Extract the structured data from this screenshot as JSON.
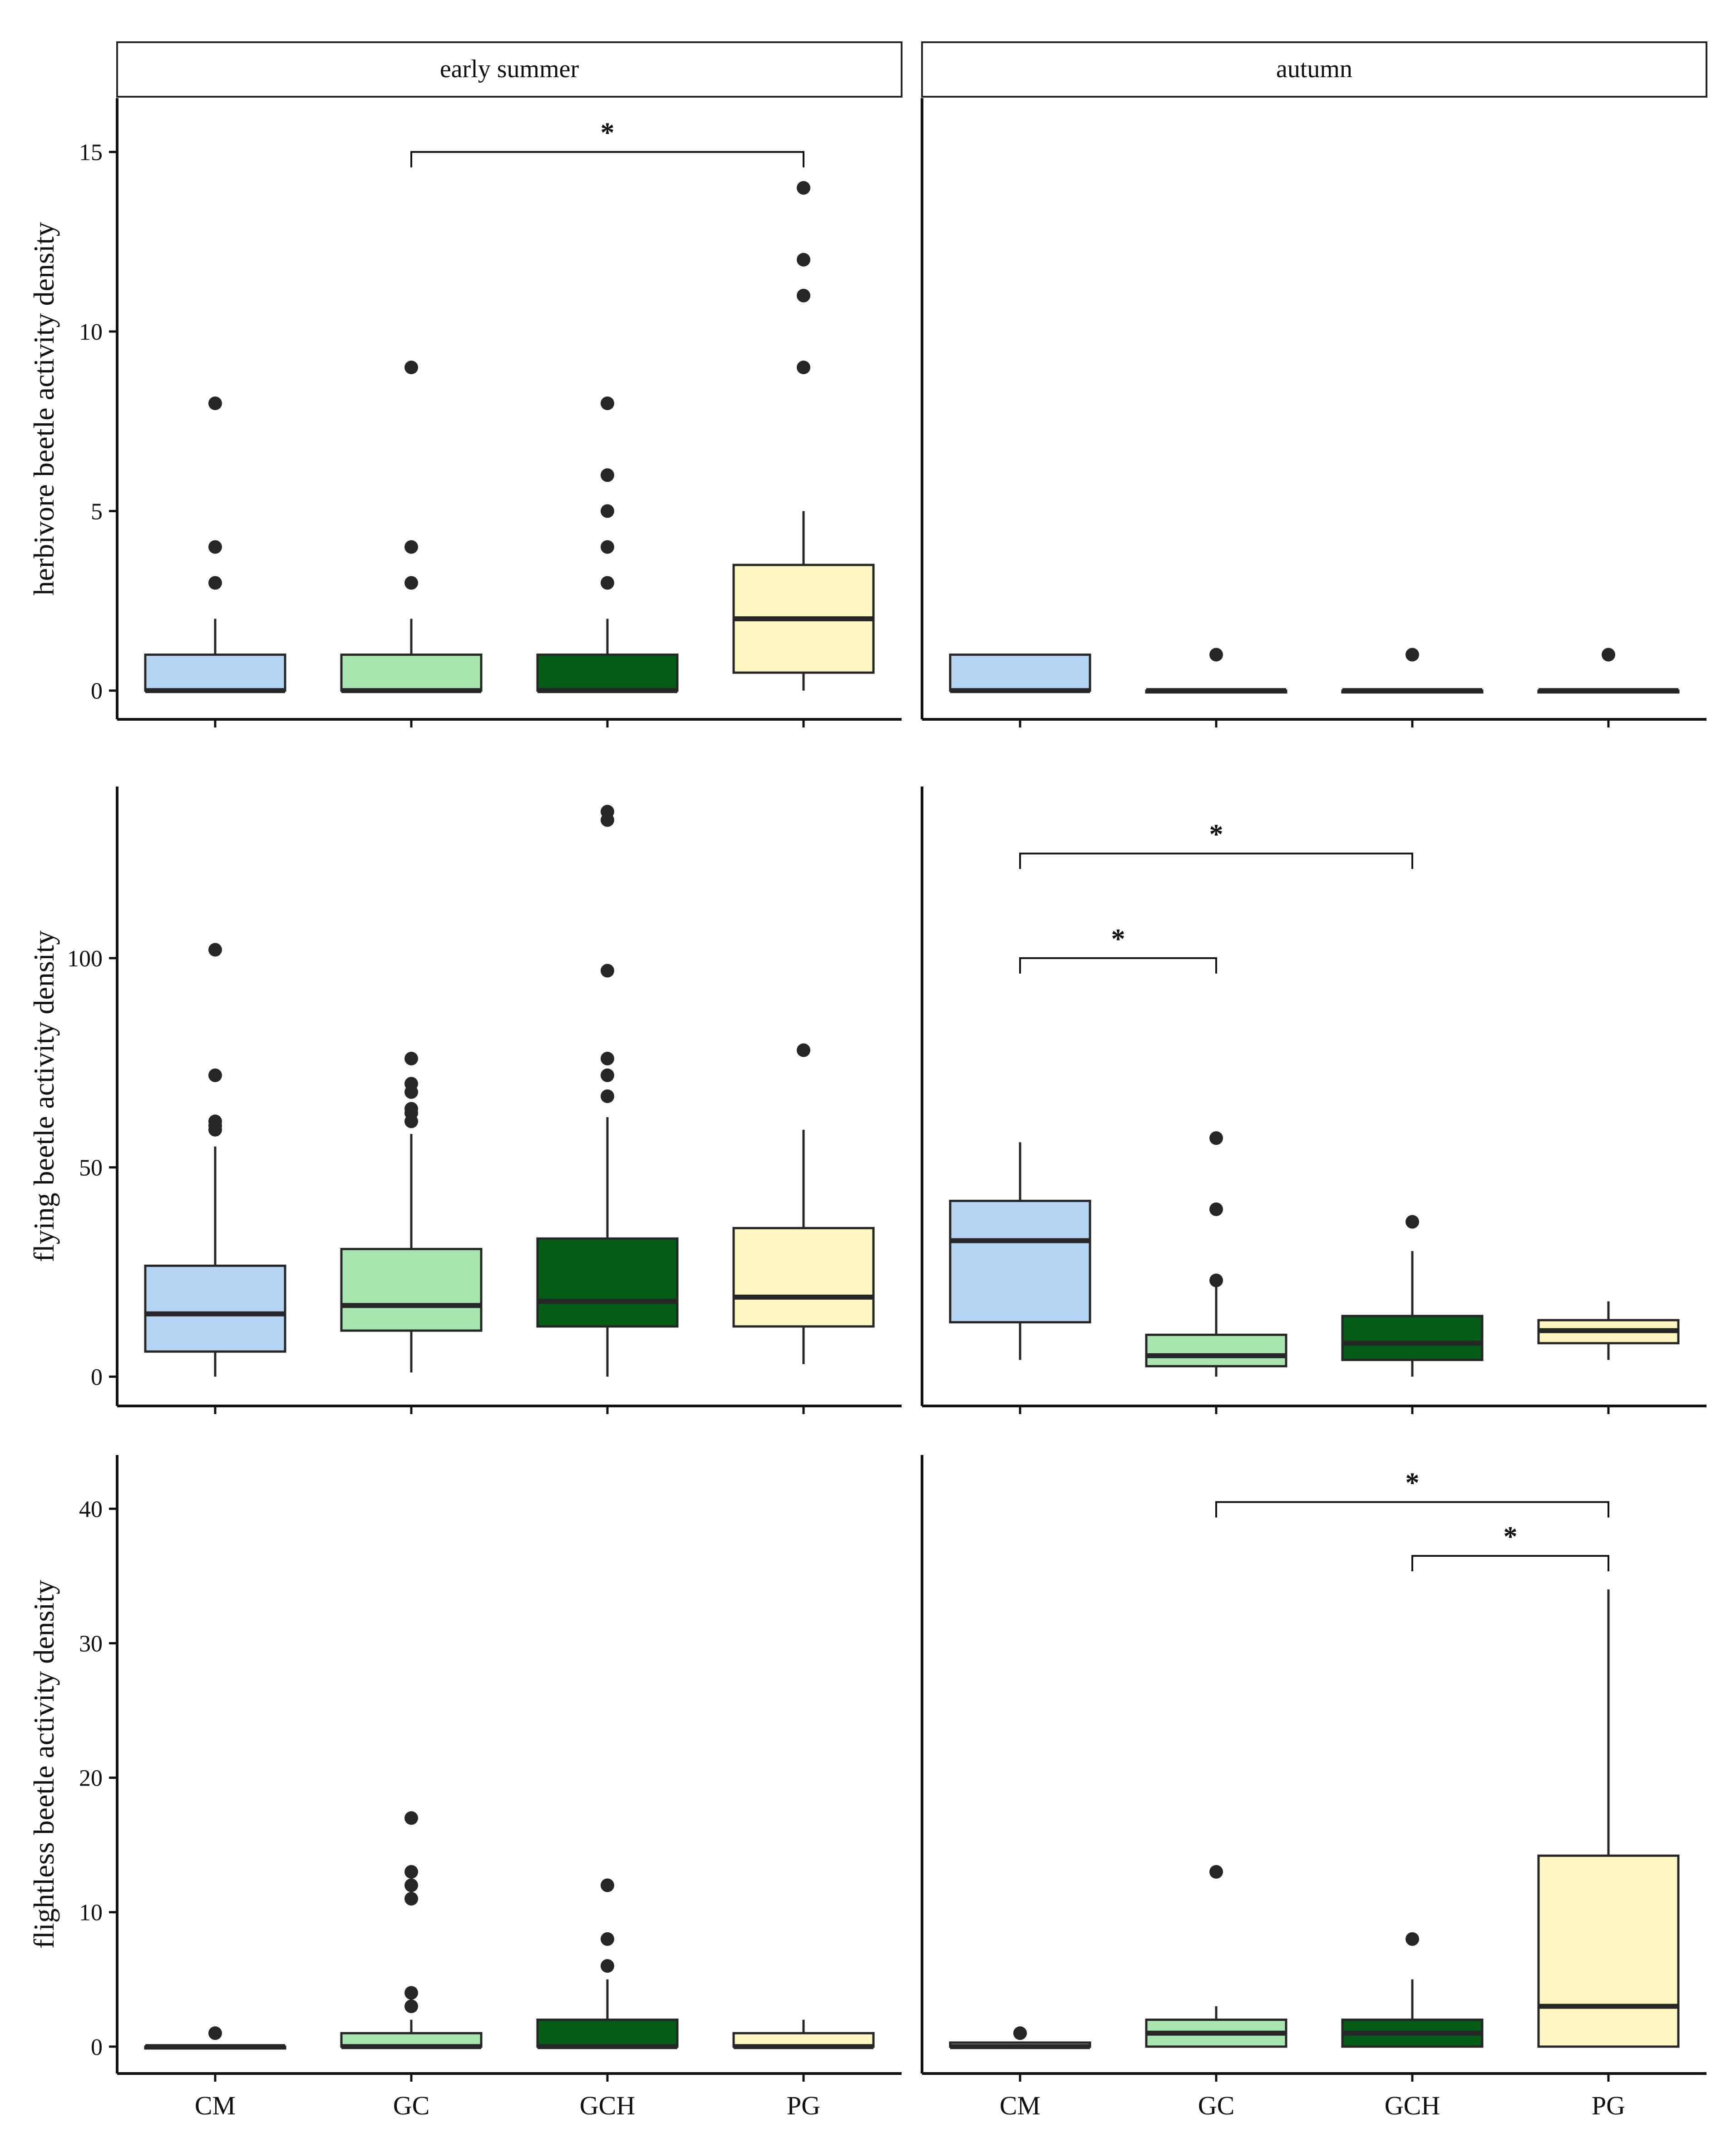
{
  "facets": [
    "early summer",
    "autumn"
  ],
  "categories": [
    "CM",
    "GC",
    "GCH",
    "PG"
  ],
  "colors": {
    "CM": "#b3d4f2",
    "GC": "#a8e6b0",
    "GCH": "#035c16",
    "PG": "#fff7c2",
    "outline": "#262626",
    "point": "#262626"
  },
  "chart_data": [
    {
      "type": "box",
      "ylabel": "herbivore beetle activity density",
      "ylim": [
        -0.8,
        16.5
      ],
      "yticks": [
        0,
        5,
        10,
        15
      ],
      "panels": [
        {
          "facet": "early summer",
          "boxes": [
            {
              "category": "CM",
              "q1": 0,
              "median": 0,
              "q3": 1,
              "whisker_low": 0,
              "whisker_high": 2,
              "outliers": [
                3,
                4,
                8
              ]
            },
            {
              "category": "GC",
              "q1": 0,
              "median": 0,
              "q3": 1,
              "whisker_low": 0,
              "whisker_high": 2,
              "outliers": [
                3,
                4,
                9
              ]
            },
            {
              "category": "GCH",
              "q1": 0,
              "median": 0,
              "q3": 1,
              "whisker_low": 0,
              "whisker_high": 2,
              "outliers": [
                3,
                4,
                5,
                6,
                8
              ]
            },
            {
              "category": "PG",
              "q1": 0.5,
              "median": 2,
              "q3": 3.5,
              "whisker_low": 0,
              "whisker_high": 5,
              "outliers": [
                9,
                11,
                12,
                14
              ]
            }
          ],
          "significance": [
            {
              "from": "GC",
              "to": "PG",
              "label": "*",
              "y": 15
            }
          ]
        },
        {
          "facet": "autumn",
          "boxes": [
            {
              "category": "CM",
              "q1": 0,
              "median": 0,
              "q3": 1,
              "whisker_low": 0,
              "whisker_high": 1,
              "outliers": []
            },
            {
              "category": "GC",
              "q1": 0,
              "median": 0,
              "q3": 0,
              "whisker_low": 0,
              "whisker_high": 0,
              "outliers": [
                1
              ]
            },
            {
              "category": "GCH",
              "q1": 0,
              "median": 0,
              "q3": 0,
              "whisker_low": 0,
              "whisker_high": 0,
              "outliers": [
                1
              ]
            },
            {
              "category": "PG",
              "q1": 0,
              "median": 0,
              "q3": 0,
              "whisker_low": 0,
              "whisker_high": 0,
              "outliers": [
                1
              ]
            }
          ],
          "significance": []
        }
      ]
    },
    {
      "type": "box",
      "ylabel": "flying beetle activity density",
      "ylim": [
        -7,
        141
      ],
      "yticks": [
        0,
        50,
        100
      ],
      "panels": [
        {
          "facet": "early summer",
          "boxes": [
            {
              "category": "CM",
              "q1": 6,
              "median": 15,
              "q3": 26.5,
              "whisker_low": 0,
              "whisker_high": 55,
              "outliers": [
                59,
                60,
                61,
                72,
                102
              ]
            },
            {
              "category": "GC",
              "q1": 11,
              "median": 17,
              "q3": 30.5,
              "whisker_low": 1,
              "whisker_high": 58,
              "outliers": [
                61,
                63,
                64,
                68,
                70,
                76
              ]
            },
            {
              "category": "GCH",
              "q1": 12,
              "median": 18,
              "q3": 33,
              "whisker_low": 0,
              "whisker_high": 62,
              "outliers": [
                67,
                72,
                76,
                97,
                133,
                135
              ]
            },
            {
              "category": "PG",
              "q1": 12,
              "median": 19,
              "q3": 35.5,
              "whisker_low": 3,
              "whisker_high": 59,
              "outliers": [
                78
              ]
            }
          ],
          "significance": []
        },
        {
          "facet": "autumn",
          "boxes": [
            {
              "category": "CM",
              "q1": 13,
              "median": 32.5,
              "q3": 42,
              "whisker_low": 4,
              "whisker_high": 56,
              "outliers": []
            },
            {
              "category": "GC",
              "q1": 2.5,
              "median": 5,
              "q3": 10,
              "whisker_low": 0,
              "whisker_high": 22,
              "outliers": [
                23,
                40,
                57
              ]
            },
            {
              "category": "GCH",
              "q1": 4,
              "median": 8,
              "q3": 14.5,
              "whisker_low": 0,
              "whisker_high": 30,
              "outliers": [
                37
              ]
            },
            {
              "category": "PG",
              "q1": 8,
              "median": 11,
              "q3": 13.5,
              "whisker_low": 4,
              "whisker_high": 18,
              "outliers": []
            }
          ],
          "significance": [
            {
              "from": "CM",
              "to": "GC",
              "label": "*",
              "y": 100
            },
            {
              "from": "CM",
              "to": "GCH",
              "label": "*",
              "y": 125
            }
          ]
        }
      ]
    },
    {
      "type": "box",
      "ylabel": "flightless beetle activity density",
      "ylim": [
        -2,
        44
      ],
      "yticks": [
        0,
        10,
        20,
        30,
        40
      ],
      "panels": [
        {
          "facet": "early summer",
          "boxes": [
            {
              "category": "CM",
              "q1": 0,
              "median": 0,
              "q3": 0,
              "whisker_low": 0,
              "whisker_high": 0,
              "outliers": [
                1
              ]
            },
            {
              "category": "GC",
              "q1": 0,
              "median": 0,
              "q3": 1,
              "whisker_low": 0,
              "whisker_high": 2,
              "outliers": [
                3,
                4,
                11,
                12,
                13,
                17
              ]
            },
            {
              "category": "GCH",
              "q1": 0,
              "median": 0,
              "q3": 2,
              "whisker_low": 0,
              "whisker_high": 5,
              "outliers": [
                6,
                8,
                12
              ]
            },
            {
              "category": "PG",
              "q1": 0,
              "median": 0,
              "q3": 1,
              "whisker_low": 0,
              "whisker_high": 2,
              "outliers": []
            }
          ],
          "significance": []
        },
        {
          "facet": "autumn",
          "boxes": [
            {
              "category": "CM",
              "q1": 0,
              "median": 0,
              "q3": 0.3,
              "whisker_low": 0,
              "whisker_high": 0.3,
              "outliers": [
                1
              ]
            },
            {
              "category": "GC",
              "q1": 0,
              "median": 1,
              "q3": 2,
              "whisker_low": 0,
              "whisker_high": 3,
              "outliers": [
                13
              ]
            },
            {
              "category": "GCH",
              "q1": 0,
              "median": 1,
              "q3": 2,
              "whisker_low": 0,
              "whisker_high": 5,
              "outliers": [
                8
              ]
            },
            {
              "category": "PG",
              "q1": 0,
              "median": 3,
              "q3": 14.2,
              "whisker_low": 0,
              "whisker_high": 34,
              "outliers": []
            }
          ],
          "significance": [
            {
              "from": "GC",
              "to": "PG",
              "label": "*",
              "y": 40.5
            },
            {
              "from": "GCH",
              "to": "PG",
              "label": "*",
              "y": 36.5
            }
          ]
        }
      ]
    }
  ]
}
